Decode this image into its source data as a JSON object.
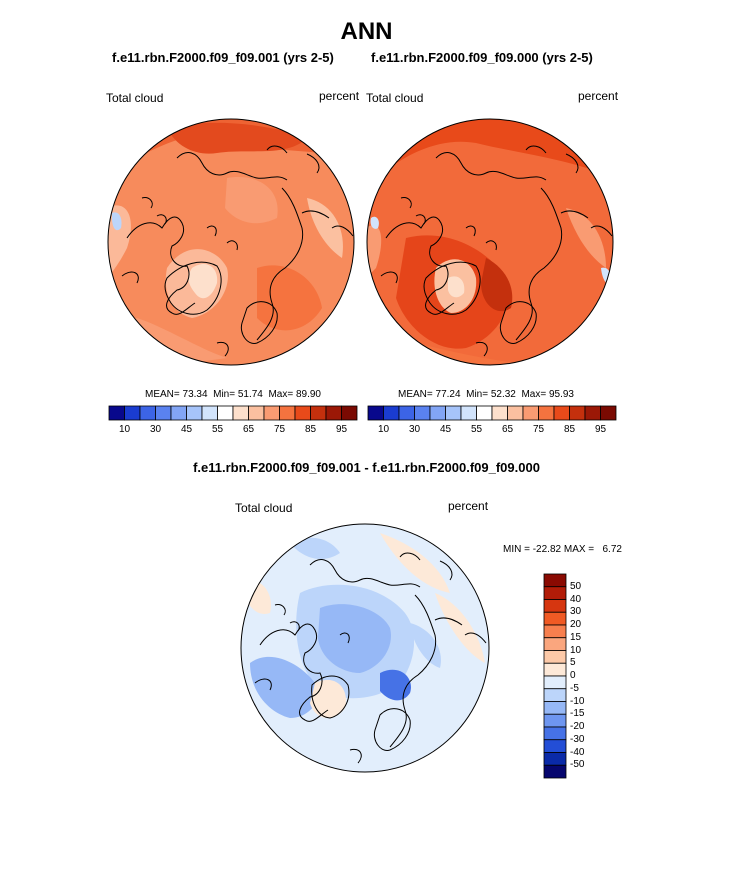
{
  "title": "ANN",
  "top_panels": [
    {
      "case": "f.e11.rbn.F2000.f09_f09.001 (yrs 2-5)",
      "variable": "Total cloud",
      "units": "percent",
      "stats": {
        "mean_label": "MEAN=",
        "mean": "73.34",
        "min_label": "Min=",
        "min": "51.74",
        "max_label": "Max=",
        "max": "89.90"
      }
    },
    {
      "case": "f.e11.rbn.F2000.f09_f09.000 (yrs 2-5)",
      "variable": "Total cloud",
      "units": "percent",
      "stats": {
        "mean_label": "MEAN=",
        "mean": "77.24",
        "min_label": "Min=",
        "min": "52.32",
        "max_label": "Max=",
        "max": "95.93"
      }
    }
  ],
  "horizontal_colorbar": {
    "tick_labels": [
      "10",
      "30",
      "45",
      "55",
      "65",
      "75",
      "85",
      "95"
    ],
    "colors": [
      "#08088c",
      "#1a3cd0",
      "#3c64e6",
      "#5a82f0",
      "#82a5f5",
      "#a6c4fa",
      "#d2e4fc",
      "#ffffff",
      "#fde0cc",
      "#fbc0a0",
      "#f99b72",
      "#f5733f",
      "#e84a1a",
      "#c4300d",
      "#9b1806",
      "#7a0a02"
    ]
  },
  "diff_panel": {
    "title": "f.e11.rbn.F2000.f09_f09.001 - f.e11.rbn.F2000.f09_f09.000",
    "variable": "Total cloud",
    "units": "percent",
    "minmax_text": "MIN = -22.82 MAX =   6.72"
  },
  "vertical_colorbar": {
    "tick_labels": [
      "50",
      "40",
      "30",
      "20",
      "15",
      "10",
      "5",
      "0",
      "-5",
      "-10",
      "-15",
      "-20",
      "-30",
      "-40",
      "-50"
    ],
    "colors": [
      "#8a0a02",
      "#b21c08",
      "#d63610",
      "#f05a24",
      "#f77f4e",
      "#faa67e",
      "#fcc9a8",
      "#fde9d8",
      "#e2eefc",
      "#bcd5fa",
      "#96b8f6",
      "#6e96f0",
      "#4672e6",
      "#234ed6",
      "#0a2aa8",
      "#06066e"
    ]
  }
}
